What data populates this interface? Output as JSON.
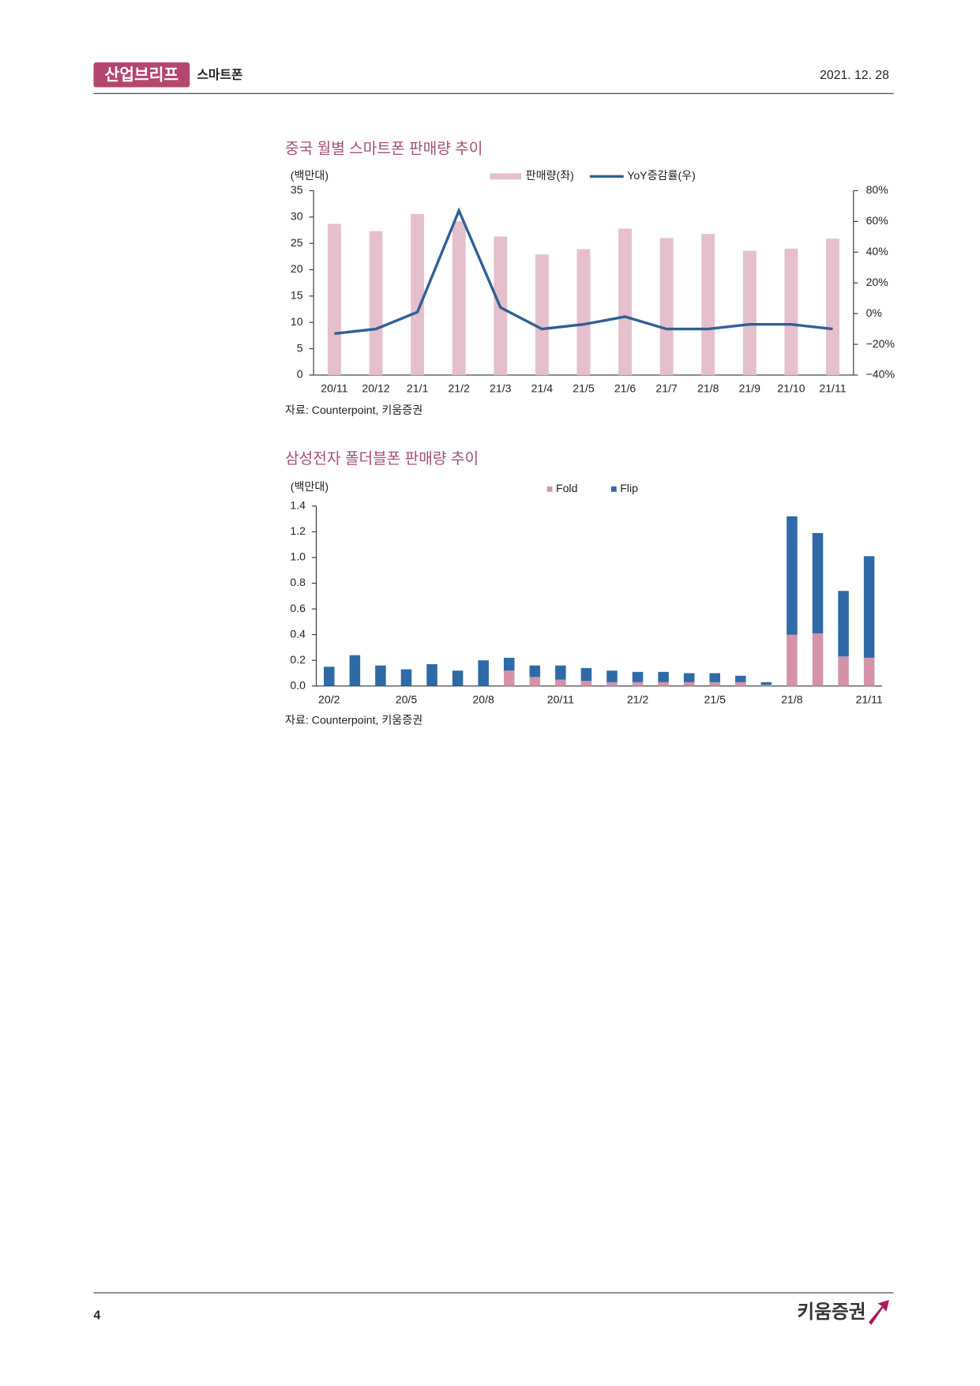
{
  "header": {
    "badge": "산업브리프",
    "section": "스마트폰",
    "date": "2021. 12. 28"
  },
  "footer": {
    "page": "4",
    "brand": "키움증권"
  },
  "chart_data": [
    {
      "type": "bar",
      "title": "중국 월별 스마트폰 판매량 추이",
      "y_label": "(백만대)",
      "source": "자료: Counterpoint, 키움증권",
      "categories": [
        "20/11",
        "20/12",
        "21/1",
        "21/2",
        "21/3",
        "21/4",
        "21/5",
        "21/6",
        "21/7",
        "21/8",
        "21/9",
        "21/10",
        "21/11"
      ],
      "series": [
        {
          "name": "판매량(좌)",
          "color": "#e6bfcd",
          "values": [
            28.7,
            27.3,
            30.6,
            29.2,
            26.3,
            22.9,
            23.9,
            27.8,
            26.0,
            26.8,
            23.6,
            24.0,
            25.9
          ]
        },
        {
          "name": "YoY증감률(우)",
          "color": "#2e6096",
          "type": "line",
          "axis": "y2",
          "values": [
            -13,
            -10,
            1,
            67,
            4,
            -10,
            -7,
            -2,
            -10,
            -10,
            -7,
            -7,
            -10
          ]
        }
      ],
      "ylim": [
        0,
        35
      ],
      "yticks": [
        0,
        5,
        10,
        15,
        20,
        25,
        30,
        35
      ],
      "y2lim": [
        -40,
        80
      ],
      "y2ticks": [
        {
          "value": -40,
          "label": "−40%"
        },
        {
          "value": -20,
          "label": "−20%"
        },
        {
          "value": 0,
          "label": "0%"
        },
        {
          "value": 20,
          "label": "20%"
        },
        {
          "value": 40,
          "label": "40%"
        },
        {
          "value": 60,
          "label": "60%"
        },
        {
          "value": 80,
          "label": "80%"
        }
      ]
    },
    {
      "type": "stacked_bar",
      "title": "삼성전자 폴더블폰 판매량 추이",
      "y_label": "(백만대)",
      "source": "자료: Counterpoint, 키움증권",
      "categories": [
        "20/2",
        null,
        null,
        "20/5",
        null,
        null,
        "20/8",
        null,
        null,
        "20/11",
        null,
        null,
        "21/2",
        null,
        null,
        "21/5",
        null,
        null,
        "21/8",
        null,
        null,
        "21/11"
      ],
      "series": [
        {
          "name": "Fold",
          "color": "#d593a9",
          "values": [
            0,
            0,
            0,
            0,
            0,
            0,
            0,
            0.12,
            0.07,
            0.05,
            0.04,
            0.03,
            0.03,
            0.03,
            0.03,
            0.03,
            0.03,
            0.01,
            0.4,
            0.41,
            0.23,
            0.22
          ]
        },
        {
          "name": "Flip",
          "color": "#2e6aa6",
          "values": [
            0.15,
            0.24,
            0.16,
            0.13,
            0.17,
            0.12,
            0.2,
            0.1,
            0.09,
            0.11,
            0.1,
            0.09,
            0.08,
            0.08,
            0.07,
            0.07,
            0.05,
            0.02,
            0.92,
            0.78,
            0.51,
            0.79
          ]
        }
      ],
      "ylim": [
        0,
        1.4
      ],
      "yticks": [
        {
          "value": 0,
          "label": "0.0"
        },
        0.2,
        0.4,
        0.6,
        0.8,
        {
          "value": 1,
          "label": "1.0"
        },
        1.2,
        1.4
      ]
    }
  ]
}
